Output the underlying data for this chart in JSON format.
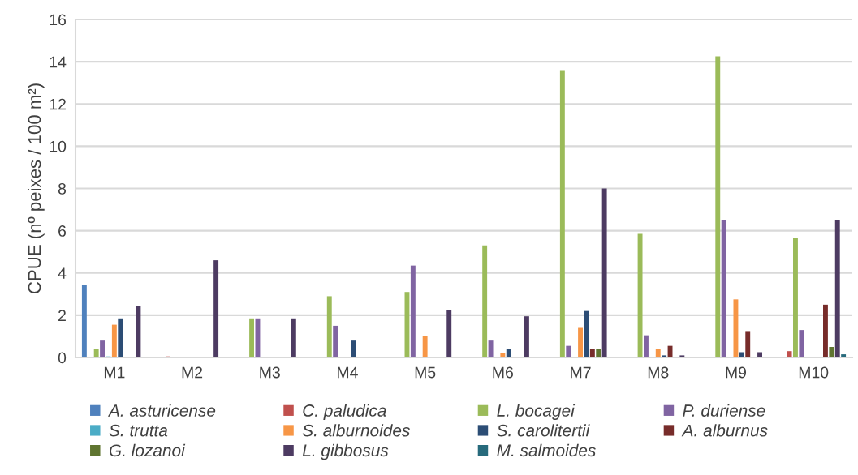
{
  "chart_data": {
    "type": "bar",
    "ylabel": "CPUE (nº peixes / 100 m²)",
    "categories": [
      "M1",
      "M2",
      "M3",
      "M4",
      "M5",
      "M6",
      "M7",
      "M8",
      "M9",
      "M10"
    ],
    "ylim": [
      0,
      16
    ],
    "yticks": [
      0,
      2,
      4,
      6,
      8,
      10,
      12,
      14,
      16
    ],
    "grid": "y",
    "legend": "bottom",
    "series": [
      {
        "name": "A. asturicense",
        "color": "#4f81bd",
        "values": [
          3.45,
          0,
          0,
          0,
          0,
          0,
          0,
          0,
          0,
          0
        ]
      },
      {
        "name": "C. paludica",
        "color": "#c0504d",
        "values": [
          0,
          0.05,
          0,
          0,
          0,
          0,
          0,
          0,
          0,
          0.3
        ]
      },
      {
        "name": "L. bocagei",
        "color": "#9bbb59",
        "values": [
          0.4,
          0,
          1.85,
          2.9,
          3.1,
          5.3,
          13.6,
          5.85,
          14.25,
          5.65
        ]
      },
      {
        "name": "P. duriense",
        "color": "#8064a2",
        "values": [
          0.8,
          0,
          1.85,
          1.5,
          4.35,
          0.8,
          0.55,
          1.05,
          6.5,
          1.3
        ]
      },
      {
        "name": "S. trutta",
        "color": "#4bacc6",
        "values": [
          0.05,
          0,
          0,
          0,
          0,
          0,
          0,
          0,
          0,
          0
        ]
      },
      {
        "name": "S. alburnoides",
        "color": "#f79646",
        "values": [
          1.55,
          0,
          0,
          0,
          1.0,
          0.2,
          1.4,
          0.4,
          2.75,
          0
        ]
      },
      {
        "name": "S. carolitertii",
        "color": "#2c4d75",
        "values": [
          1.85,
          0,
          0,
          0.8,
          0,
          0.4,
          2.2,
          0.1,
          0.25,
          0
        ]
      },
      {
        "name": "A. alburnus",
        "color": "#772c2a",
        "values": [
          0,
          0,
          0,
          0,
          0,
          0,
          0.4,
          0.55,
          1.25,
          2.5
        ]
      },
      {
        "name": "G. lozanoi",
        "color": "#5f7530",
        "values": [
          0,
          0,
          0,
          0,
          0,
          0,
          0.4,
          0,
          0,
          0.5
        ]
      },
      {
        "name": "L. gibbosus",
        "color": "#4d3b62",
        "values": [
          2.45,
          4.6,
          1.85,
          0,
          2.25,
          1.95,
          8.0,
          0.1,
          0.25,
          6.5
        ]
      },
      {
        "name": "M. salmoides",
        "color": "#276a7c",
        "values": [
          0,
          0,
          0,
          0,
          0,
          0,
          0,
          0,
          0,
          0.15
        ]
      }
    ]
  }
}
